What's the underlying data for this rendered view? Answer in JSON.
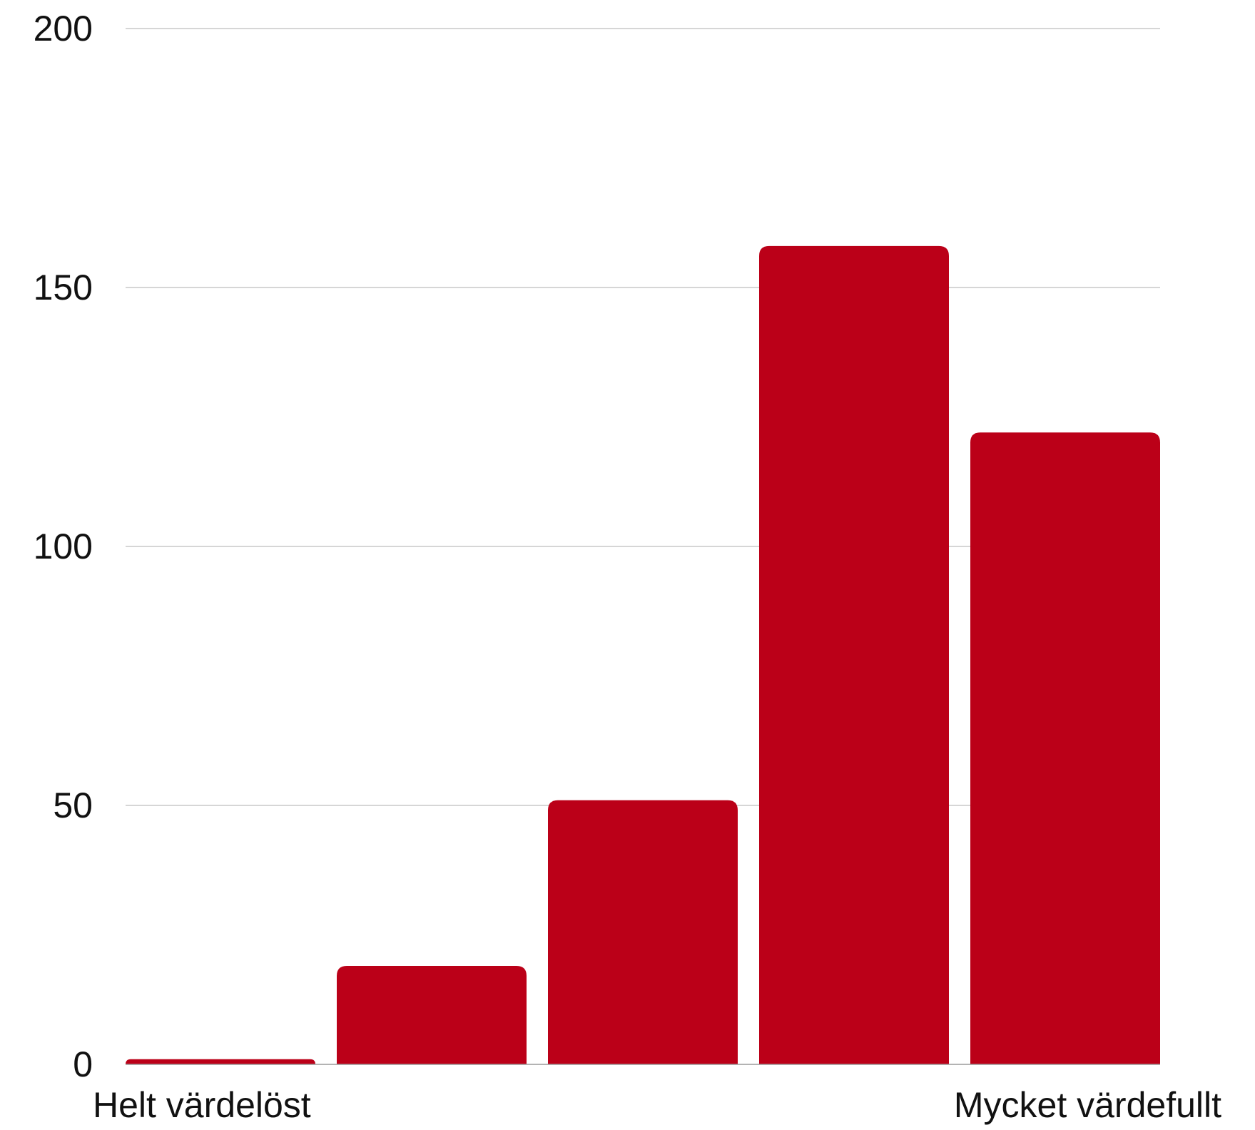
{
  "chart_data": {
    "type": "bar",
    "categories": [
      "",
      "",
      "",
      "",
      ""
    ],
    "values": [
      1,
      19,
      51,
      158,
      122
    ],
    "ylim": [
      0,
      200
    ],
    "yticks": [
      0,
      50,
      100,
      150,
      200
    ],
    "ytick_labels": [
      "0",
      "50",
      "100",
      "150",
      "200"
    ],
    "x_end_labels": {
      "left": "Helt värdelöst",
      "right": "Mycket värdefullt"
    },
    "grid": true,
    "bar_color": "#bb0018",
    "grid_color": "#c8c8c8",
    "text_color": "#111111"
  }
}
